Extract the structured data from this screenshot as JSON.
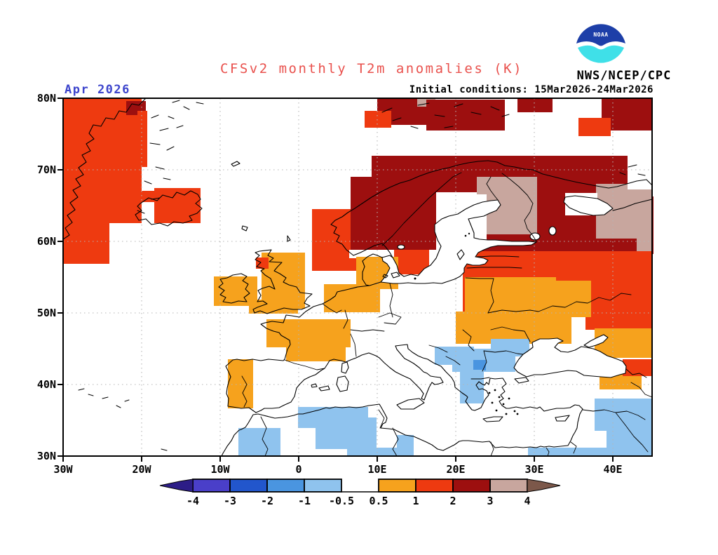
{
  "header": {
    "title": "CFSv2 monthly T2m anomalies (K)",
    "agency": "NWS/NCEP/CPC",
    "initial_conditions": "Initial conditions: 15Mar2026-24Mar2026",
    "month_label": "Apr 2026",
    "logo_text": "NOAA"
  },
  "colors": {
    "title": "#e9514d",
    "month_label": "#3c44cc",
    "text": "#000000",
    "grid": "#b5b5b5",
    "noaa_blue": "#1d3fa8",
    "noaa_cyan": "#3fe0e8"
  },
  "palette": {
    "O": "#f6a21d",
    "R": "#ee3a10",
    "D": "#9d0f0f",
    "T": "#c8a69e",
    "LB": "#8fc3ee",
    "MB": "#4a95e0",
    "W": "#ffffff"
  },
  "axes": {
    "lat_ticks": [
      "80N",
      "70N",
      "60N",
      "50N",
      "40N",
      "30N"
    ],
    "lon_ticks": [
      "30W",
      "20W",
      "10W",
      "0",
      "10E",
      "20E",
      "30E",
      "40E"
    ]
  },
  "legend": {
    "labels": [
      "-4",
      "-3",
      "-2",
      "-1",
      "-0.5",
      "0.5",
      "1",
      "2",
      "3",
      "4"
    ],
    "segment_colors": [
      "#4a3fc9",
      "#2256cc",
      "#4a95e0",
      "#8fc3ee",
      "#ffffff",
      "#f6a21d",
      "#ee3a10",
      "#9d0f0f",
      "#c8a69e"
    ],
    "left_arrow_color": "#2c1d87",
    "right_arrow_color": "#7c584a"
  },
  "map": {
    "anomaly_cells": [
      [
        "R",
        90,
        140,
        112,
        178
      ],
      [
        "R",
        90,
        318,
        66,
        58
      ],
      [
        "D",
        180,
        144,
        28,
        20
      ],
      [
        "R",
        196,
        158,
        14,
        80
      ],
      [
        "R",
        220,
        268,
        66,
        50
      ],
      [
        "R",
        202,
        272,
        18,
        16
      ],
      [
        "D",
        538,
        140,
        70,
        38
      ],
      [
        "R",
        520,
        158,
        38,
        24
      ],
      [
        "T",
        595,
        140,
        26,
        12
      ],
      [
        "D",
        608,
        142,
        112,
        44
      ],
      [
        "D",
        738,
        140,
        50,
        20
      ],
      [
        "D",
        858,
        140,
        72,
        46
      ],
      [
        "R",
        825,
        168,
        46,
        26
      ],
      [
        "R",
        445,
        298,
        72,
        88
      ],
      [
        "R",
        488,
        336,
        60,
        28
      ],
      [
        "R",
        530,
        345,
        82,
        46
      ],
      [
        "D",
        500,
        252,
        122,
        104
      ],
      [
        "D",
        530,
        222,
        182,
        52
      ],
      [
        "D",
        700,
        222,
        230,
        84
      ],
      [
        "D",
        650,
        280,
        282,
        82
      ],
      [
        "D",
        710,
        348,
        220,
        42
      ],
      [
        "D",
        878,
        388,
        52,
        14
      ],
      [
        "T",
        680,
        252,
        86,
        82
      ],
      [
        "T",
        850,
        262,
        80,
        78
      ],
      [
        "T",
        908,
        334,
        22,
        26
      ],
      [
        "R",
        660,
        358,
        270,
        96
      ],
      [
        "R",
        815,
        430,
        115,
        40
      ],
      [
        "R",
        680,
        364,
        82,
        36
      ],
      [
        "W",
        640,
        277,
        54,
        70
      ],
      [
        "W",
        806,
        275,
        46,
        32
      ],
      [
        "W",
        895,
        222,
        35,
        48
      ],
      [
        "W",
        498,
        356,
        64,
        12
      ],
      [
        "W",
        790,
        450,
        45,
        33
      ],
      [
        "O",
        663,
        395,
        130,
        54
      ],
      [
        "O",
        790,
        400,
        53,
        52
      ],
      [
        "O",
        650,
        444,
        165,
        46
      ],
      [
        "O",
        848,
        468,
        82,
        42
      ],
      [
        "O",
        508,
        366,
        60,
        46
      ],
      [
        "O",
        462,
        405,
        80,
        40
      ],
      [
        "O",
        373,
        360,
        62,
        80
      ],
      [
        "O",
        355,
        427,
        70,
        20
      ],
      [
        "O",
        305,
        394,
        62,
        42
      ],
      [
        "O",
        380,
        455,
        120,
        40
      ],
      [
        "O",
        408,
        470,
        85,
        45
      ],
      [
        "O",
        325,
        512,
        36,
        70
      ],
      [
        "R",
        365,
        367,
        18,
        16
      ],
      [
        "O",
        855,
        533,
        60,
        22
      ],
      [
        "R",
        888,
        512,
        42,
        24
      ],
      [
        "LB",
        620,
        494,
        56,
        26
      ],
      [
        "LB",
        645,
        497,
        90,
        33
      ],
      [
        "LB",
        700,
        483,
        55,
        25
      ],
      [
        "MB",
        675,
        513,
        18,
        15
      ],
      [
        "LB",
        656,
        527,
        34,
        48
      ],
      [
        "LB",
        848,
        568,
        82,
        46
      ],
      [
        "LB",
        865,
        602,
        65,
        44
      ],
      [
        "LB",
        425,
        580,
        100,
        30
      ],
      [
        "LB",
        340,
        610,
        60,
        40
      ],
      [
        "LB",
        450,
        610,
        48,
        30
      ],
      [
        "LB",
        495,
        595,
        42,
        55
      ],
      [
        "LB",
        566,
        620,
        24,
        28
      ],
      [
        "LB",
        500,
        638,
        90,
        12
      ],
      [
        "LB",
        753,
        638,
        177,
        12
      ]
    ]
  }
}
